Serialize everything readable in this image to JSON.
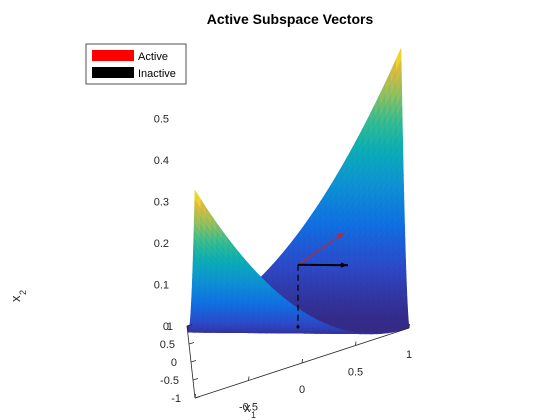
{
  "chart_data": {
    "type": "surface",
    "title": "Active Subspace Vectors",
    "xlabel": {
      "main": "x",
      "sub": "1"
    },
    "ylabel": {
      "main": "x",
      "sub": "2"
    },
    "zlabel": "",
    "xlim": [
      -1,
      1
    ],
    "ylim": [
      -1,
      1
    ],
    "zlim": [
      0,
      0.5
    ],
    "x_ticks": [
      "-1",
      "-0.5",
      "0",
      "0.5",
      "1"
    ],
    "x_tick_values": [
      -1,
      -0.5,
      0,
      0.5,
      1
    ],
    "y_ticks": [
      "-1",
      "-0.5",
      "0",
      "0.5",
      "1"
    ],
    "y_tick_values": [
      -1,
      -0.5,
      0,
      0.5,
      1
    ],
    "z_ticks": [
      "0",
      "0.1",
      "0.2",
      "0.3",
      "0.4",
      "0.5"
    ],
    "z_tick_values": [
      0,
      0.1,
      0.2,
      0.3,
      0.4,
      0.5
    ],
    "colormap": "parula",
    "view": "3-D view from elevated front-left",
    "legend": {
      "placement": "top-left",
      "entries": [
        {
          "label": "Active",
          "color": "#ff0000"
        },
        {
          "label": "Inactive",
          "color": "#000000"
        }
      ]
    },
    "vectors": [
      {
        "name": "Active",
        "color": "#c0282d",
        "style": "solid",
        "from": [
          0,
          0,
          0.15
        ],
        "to": [
          0.45,
          0.45,
          0.15
        ]
      },
      {
        "name": "Inactive",
        "color": "#000000",
        "style": "solid",
        "from": [
          0,
          0,
          0.15
        ],
        "to": [
          0.45,
          -0.45,
          0.15
        ]
      },
      {
        "name": "",
        "color": "#000000",
        "style": "dashed",
        "from": [
          0,
          0,
          0.15
        ],
        "to": [
          0,
          0,
          0
        ]
      }
    ]
  }
}
